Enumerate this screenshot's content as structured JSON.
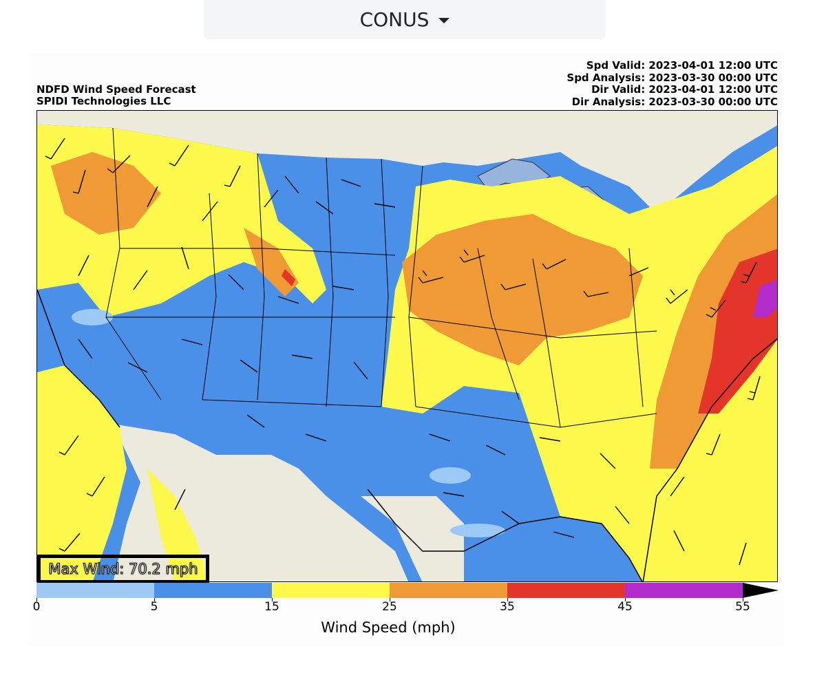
{
  "region_selector": {
    "label": "CONUS",
    "icon": "chevron-down-icon"
  },
  "header": {
    "title": "NDFD Wind Speed Forecast",
    "org": "SPIDI Technologies LLC",
    "spd_valid": "Spd Valid: 2023-04-01 12:00 UTC",
    "spd_analysis": "Spd Analysis: 2023-03-30 00:00 UTC",
    "dir_valid": "Dir Valid: 2023-04-01 12:00 UTC",
    "dir_analysis": "Dir Analysis: 2023-03-30 00:00 UTC"
  },
  "max_wind": "Max Wind: 70.2 mph",
  "colorbar": {
    "label": "Wind Speed (mph)",
    "ticks": [
      "0",
      "5",
      "15",
      "25",
      "35",
      "45",
      "55"
    ],
    "colors": [
      "#9ccaf4",
      "#4a90e8",
      "#fcf84c",
      "#ef9a35",
      "#e4352a",
      "#b22ccc",
      "#000000"
    ]
  },
  "map_colors": {
    "land_outside": "#eceadc",
    "water": "#97b5dc",
    "calm": "#9ccaf4",
    "light": "#4a90e8",
    "moderate": "#fcf84c",
    "fresh": "#ef9a35",
    "strong": "#e4352a",
    "gale": "#b22ccc"
  }
}
